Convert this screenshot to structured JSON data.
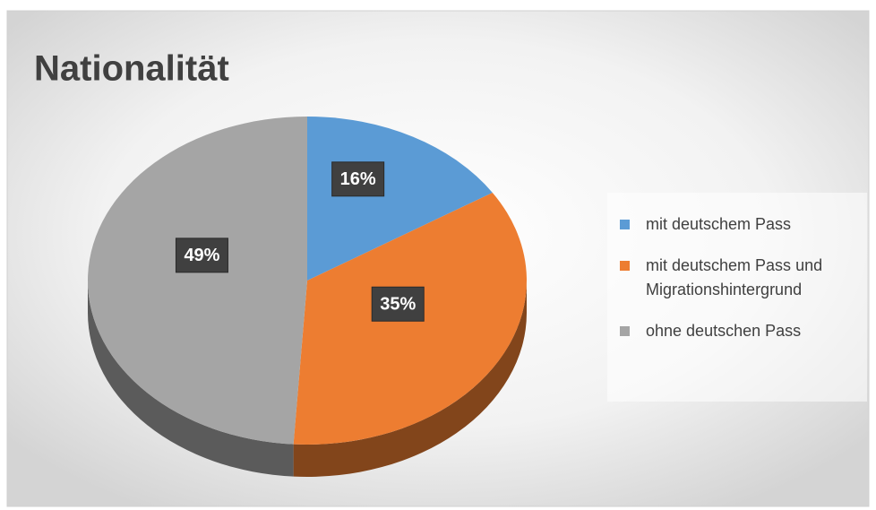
{
  "chart_data": {
    "type": "pie",
    "title": "Nationalität",
    "categories": [
      "mit deutschem Pass",
      "mit deutschem Pass und Migrationshintergrund",
      "ohne deutschen Pass"
    ],
    "values": [
      16,
      35,
      49
    ],
    "value_labels": [
      "16%",
      "35%",
      "49%"
    ],
    "colors": [
      "#5b9bd5",
      "#ed7d31",
      "#a5a5a5"
    ],
    "legend": "right"
  }
}
